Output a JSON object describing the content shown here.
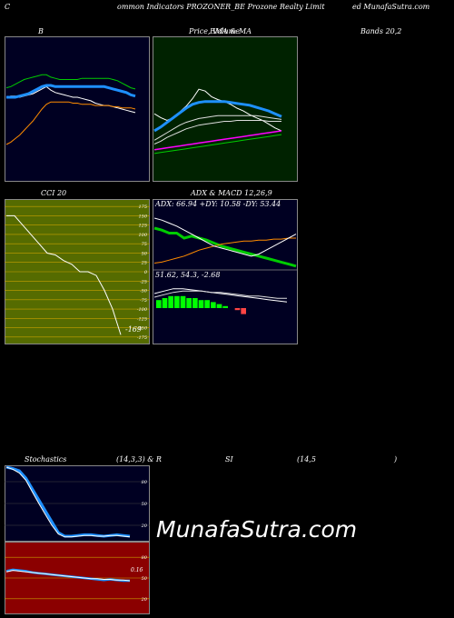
{
  "header": {
    "seg1": "C",
    "seg2": "ommon  Indicators PROZONER_BE Prozone  Realty Limit",
    "seg3": "ed MunafaSutra.com"
  },
  "row1": {
    "label_b": "B",
    "label_price_volume": "Price,  Volume",
    "label_ema": "EMA  &  MA",
    "label_bands": "Bands 20,2"
  },
  "row2": {
    "label_cci": "CCI 20",
    "label_adx": "ADX  & MACD 12,26,9",
    "adx_readout": "ADX: 66.94  +DY: 10.58  -DY: 53.44",
    "macd_readout": "51.62,  54.3,  -2.68",
    "cci_value": "-169"
  },
  "row3": {
    "label_stoch": "Stochastics",
    "label_params": "(14,3,3) & R",
    "label_si": "SI",
    "label_rsi_params": "(14,5",
    "label_paren": ")",
    "rsi_value": "0.16"
  },
  "watermark": "MunafaSutra.com",
  "colors": {
    "bands_bg": "#000022",
    "ema_bg": "#002200",
    "cci_bg": "#556b00",
    "stoch_bg": "#000022",
    "rsi_bg": "#8b0000",
    "blue_line": "#1e90ff",
    "green_line": "#00cc00",
    "orange_line": "#ff8c00",
    "magenta_line": "#ff00ff"
  },
  "chart_data": [
    {
      "type": "line",
      "id": "bollinger",
      "series": [
        {
          "color": "#ffffff",
          "values": [
            70,
            71,
            71,
            70,
            71,
            72,
            73,
            75,
            77,
            79,
            76,
            74,
            73,
            72,
            71,
            70,
            70,
            69,
            68,
            67,
            65,
            64,
            63,
            63,
            62,
            61,
            60,
            59,
            58,
            57
          ]
        },
        {
          "color": "#1e90ff",
          "values": [
            70,
            70,
            70,
            71,
            72,
            73,
            75,
            77,
            79,
            80,
            80,
            79,
            79,
            79,
            79,
            79,
            79,
            79,
            79,
            79,
            79,
            79,
            79,
            78,
            77,
            76,
            75,
            74,
            72,
            71
          ]
        },
        {
          "color": "#00cc00",
          "values": [
            78,
            79,
            81,
            83,
            85,
            86,
            87,
            88,
            89,
            89,
            87,
            86,
            85,
            85,
            85,
            85,
            85,
            86,
            86,
            86,
            86,
            86,
            86,
            86,
            85,
            84,
            82,
            80,
            78,
            77
          ]
        },
        {
          "color": "#ff8c00",
          "values": [
            30,
            32,
            35,
            38,
            42,
            46,
            50,
            55,
            60,
            64,
            66,
            66,
            66,
            66,
            66,
            65,
            65,
            64,
            64,
            64,
            63,
            63,
            63,
            63,
            62,
            62,
            61,
            61,
            61,
            60
          ]
        }
      ],
      "ylim": [
        0,
        120
      ]
    },
    {
      "type": "line",
      "id": "ema_ma",
      "series": [
        {
          "color": "#ffffff",
          "values": [
            70,
            66,
            63,
            66,
            72,
            78,
            86,
            96,
            94,
            88,
            85,
            83,
            80,
            76,
            73,
            69,
            66,
            63,
            59,
            55,
            52
          ]
        },
        {
          "color": "#1e90ff",
          "values": [
            52,
            56,
            61,
            66,
            71,
            76,
            80,
            82,
            83,
            83,
            83,
            83,
            82,
            81,
            80,
            79,
            77,
            75,
            73,
            70,
            67
          ]
        },
        {
          "color": "#dddddd",
          "values": [
            42,
            46,
            50,
            54,
            58,
            61,
            63,
            65,
            66,
            67,
            68,
            68,
            68,
            68,
            68,
            68,
            68,
            67,
            66,
            65,
            64
          ]
        },
        {
          "color": "#dddddd",
          "values": [
            38,
            41,
            45,
            48,
            51,
            54,
            56,
            58,
            59,
            60,
            61,
            62,
            62,
            63,
            63,
            63,
            63,
            63,
            62,
            62,
            62
          ]
        },
        {
          "color": "#00cc00",
          "values": [
            28,
            29,
            30,
            31,
            32,
            33,
            34,
            35,
            36,
            37,
            38,
            39,
            40,
            41,
            42,
            43,
            44,
            45,
            46,
            47,
            48
          ]
        },
        {
          "color": "#ff00ff",
          "values": [
            32,
            33,
            34,
            35,
            36,
            37,
            38,
            39,
            40,
            41,
            42,
            43,
            44,
            45,
            46,
            47,
            48,
            49,
            50,
            51,
            52
          ]
        }
      ],
      "ylim": [
        0,
        150
      ]
    },
    {
      "type": "line",
      "id": "cci",
      "yticks": [
        175,
        150,
        125,
        100,
        75,
        50,
        25,
        0,
        -25,
        -50,
        -75,
        -100,
        -125,
        -150,
        -175
      ],
      "series": [
        {
          "color": "#ffffff",
          "values": [
            150,
            150,
            125,
            100,
            75,
            50,
            45,
            30,
            20,
            0,
            0,
            -10,
            -50,
            -100,
            -169
          ]
        }
      ],
      "ylim": [
        -190,
        190
      ]
    },
    {
      "type": "line",
      "id": "adx",
      "series": [
        {
          "color": "#00cc00",
          "values": [
            40,
            38,
            35,
            35,
            30,
            32,
            30,
            28,
            25,
            22,
            20,
            18,
            16,
            14,
            12,
            10,
            8,
            6,
            4,
            2
          ]
        },
        {
          "color": "#ff8c00",
          "values": [
            5,
            6,
            8,
            10,
            12,
            15,
            18,
            20,
            22,
            24,
            25,
            26,
            27,
            27,
            28,
            28,
            29,
            29,
            30,
            30
          ]
        },
        {
          "color": "#ffffff",
          "values": [
            50,
            48,
            45,
            42,
            38,
            34,
            30,
            26,
            22,
            20,
            18,
            16,
            14,
            12,
            14,
            18,
            22,
            26,
            30,
            34
          ]
        }
      ],
      "ylim": [
        0,
        60
      ]
    },
    {
      "type": "line",
      "id": "macd",
      "series": [
        {
          "color": "#ffffff",
          "values": [
            58,
            60,
            62,
            62,
            61,
            60,
            59,
            58,
            57,
            56,
            55,
            54,
            53,
            52,
            51
          ]
        },
        {
          "color": "#dddddd",
          "values": [
            55,
            57,
            59,
            60,
            60,
            60,
            59,
            59,
            58,
            57,
            56,
            56,
            55,
            54,
            54
          ]
        }
      ],
      "histogram": [
        4,
        5,
        6,
        6,
        6,
        5,
        5,
        4,
        4,
        3,
        2,
        1,
        0,
        -1,
        -3
      ],
      "ylim": [
        40,
        70
      ]
    },
    {
      "type": "line",
      "id": "stochastics",
      "yticks": [
        80,
        50,
        20
      ],
      "series": [
        {
          "color": "#1e90ff",
          "values": [
            100,
            98,
            95,
            85,
            70,
            55,
            40,
            25,
            10,
            5,
            5,
            6,
            7,
            7,
            6,
            5,
            6,
            7,
            6,
            5
          ]
        },
        {
          "color": "#ffffff",
          "values": [
            100,
            97,
            92,
            82,
            66,
            50,
            35,
            20,
            8,
            4,
            4,
            5,
            6,
            6,
            5,
            5,
            6,
            6,
            5,
            4
          ]
        }
      ],
      "ylim": [
        0,
        100
      ]
    },
    {
      "type": "line",
      "id": "rsi",
      "yticks": [
        80,
        50,
        20
      ],
      "series": [
        {
          "color": "#1e90ff",
          "values": [
            60,
            62,
            61,
            60,
            58,
            57,
            56,
            55,
            54,
            53,
            52,
            51,
            50,
            49,
            48,
            47,
            48,
            47,
            46,
            46
          ]
        },
        {
          "color": "#ffffff",
          "values": [
            59,
            61,
            60,
            59,
            58,
            57,
            56,
            55,
            54,
            53,
            52,
            51,
            50,
            49,
            49,
            48,
            48,
            47,
            47,
            46
          ]
        }
      ],
      "ylim": [
        0,
        100
      ]
    }
  ]
}
